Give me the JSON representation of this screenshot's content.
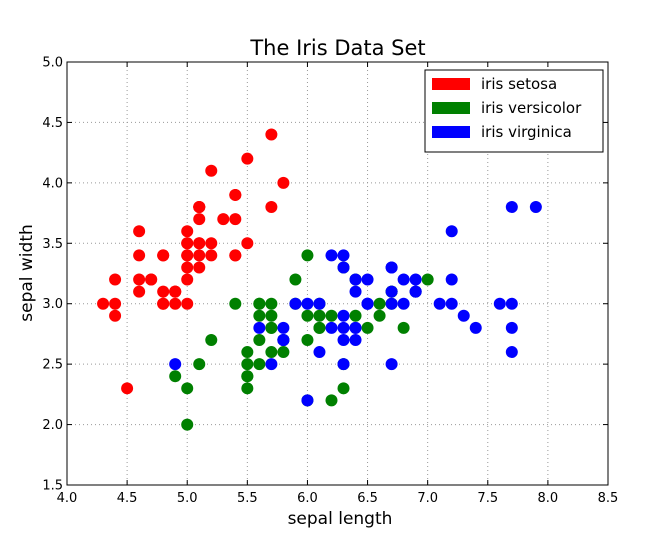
{
  "chart_data": {
    "type": "scatter",
    "title": "The Iris Data Set",
    "xlabel": "sepal length",
    "ylabel": "sepal width",
    "xlim": [
      4.0,
      8.5
    ],
    "ylim": [
      1.5,
      5.0
    ],
    "xticks": [
      "4.0",
      "4.5",
      "5.0",
      "5.5",
      "6.0",
      "6.5",
      "7.0",
      "7.5",
      "8.0",
      "8.5"
    ],
    "yticks": [
      "1.5",
      "2.0",
      "2.5",
      "3.0",
      "3.5",
      "4.0",
      "4.5",
      "5.0"
    ],
    "grid": true,
    "legend_position": "top-right",
    "series": [
      {
        "name": "iris setosa",
        "color": "#ff0000",
        "points": [
          [
            5.1,
            3.5
          ],
          [
            4.9,
            3.0
          ],
          [
            4.7,
            3.2
          ],
          [
            4.6,
            3.1
          ],
          [
            5.0,
            3.6
          ],
          [
            5.4,
            3.9
          ],
          [
            4.6,
            3.4
          ],
          [
            5.0,
            3.4
          ],
          [
            4.4,
            2.9
          ],
          [
            4.9,
            3.1
          ],
          [
            5.4,
            3.7
          ],
          [
            4.8,
            3.4
          ],
          [
            4.8,
            3.0
          ],
          [
            4.3,
            3.0
          ],
          [
            5.8,
            4.0
          ],
          [
            5.7,
            4.4
          ],
          [
            5.4,
            3.9
          ],
          [
            5.1,
            3.5
          ],
          [
            5.7,
            3.8
          ],
          [
            5.1,
            3.8
          ],
          [
            5.4,
            3.4
          ],
          [
            5.1,
            3.7
          ],
          [
            4.6,
            3.6
          ],
          [
            5.1,
            3.3
          ],
          [
            4.8,
            3.4
          ],
          [
            5.0,
            3.0
          ],
          [
            5.0,
            3.4
          ],
          [
            5.2,
            3.5
          ],
          [
            5.2,
            3.4
          ],
          [
            4.7,
            3.2
          ],
          [
            4.8,
            3.1
          ],
          [
            5.4,
            3.4
          ],
          [
            5.2,
            4.1
          ],
          [
            5.5,
            4.2
          ],
          [
            4.9,
            3.1
          ],
          [
            5.0,
            3.2
          ],
          [
            5.5,
            3.5
          ],
          [
            4.9,
            3.1
          ],
          [
            4.4,
            3.0
          ],
          [
            5.1,
            3.4
          ],
          [
            5.0,
            3.5
          ],
          [
            4.5,
            2.3
          ],
          [
            4.4,
            3.2
          ],
          [
            5.0,
            3.5
          ],
          [
            5.1,
            3.8
          ],
          [
            4.8,
            3.0
          ],
          [
            5.1,
            3.8
          ],
          [
            4.6,
            3.2
          ],
          [
            5.3,
            3.7
          ],
          [
            5.0,
            3.3
          ]
        ]
      },
      {
        "name": "iris versicolor",
        "color": "#008000",
        "points": [
          [
            7.0,
            3.2
          ],
          [
            6.4,
            3.2
          ],
          [
            6.9,
            3.1
          ],
          [
            5.5,
            2.3
          ],
          [
            6.5,
            2.8
          ],
          [
            5.7,
            2.8
          ],
          [
            6.3,
            3.3
          ],
          [
            4.9,
            2.4
          ],
          [
            6.6,
            2.9
          ],
          [
            5.2,
            2.7
          ],
          [
            5.0,
            2.0
          ],
          [
            5.9,
            3.0
          ],
          [
            6.0,
            2.2
          ],
          [
            6.1,
            2.9
          ],
          [
            5.6,
            2.9
          ],
          [
            6.7,
            3.1
          ],
          [
            5.6,
            3.0
          ],
          [
            5.8,
            2.7
          ],
          [
            6.2,
            2.2
          ],
          [
            5.6,
            2.5
          ],
          [
            5.9,
            3.2
          ],
          [
            6.1,
            2.8
          ],
          [
            6.3,
            2.5
          ],
          [
            6.1,
            2.8
          ],
          [
            6.4,
            2.9
          ],
          [
            6.6,
            3.0
          ],
          [
            6.8,
            2.8
          ],
          [
            6.7,
            3.0
          ],
          [
            6.0,
            2.9
          ],
          [
            5.7,
            2.6
          ],
          [
            5.5,
            2.4
          ],
          [
            5.5,
            2.4
          ],
          [
            5.8,
            2.7
          ],
          [
            6.0,
            2.7
          ],
          [
            5.4,
            3.0
          ],
          [
            6.0,
            3.4
          ],
          [
            6.7,
            3.1
          ],
          [
            6.3,
            2.3
          ],
          [
            5.6,
            3.0
          ],
          [
            5.5,
            2.5
          ],
          [
            5.5,
            2.6
          ],
          [
            6.1,
            3.0
          ],
          [
            5.8,
            2.6
          ],
          [
            5.0,
            2.3
          ],
          [
            5.6,
            2.7
          ],
          [
            5.7,
            3.0
          ],
          [
            5.7,
            2.9
          ],
          [
            6.2,
            2.9
          ],
          [
            5.1,
            2.5
          ],
          [
            5.7,
            2.8
          ]
        ]
      },
      {
        "name": "iris virginica",
        "color": "#0000ff",
        "points": [
          [
            6.3,
            3.3
          ],
          [
            5.8,
            2.7
          ],
          [
            7.1,
            3.0
          ],
          [
            6.3,
            2.9
          ],
          [
            6.5,
            3.0
          ],
          [
            7.6,
            3.0
          ],
          [
            4.9,
            2.5
          ],
          [
            7.3,
            2.9
          ],
          [
            6.7,
            2.5
          ],
          [
            7.2,
            3.6
          ],
          [
            6.5,
            3.2
          ],
          [
            6.4,
            2.7
          ],
          [
            6.8,
            3.0
          ],
          [
            5.7,
            2.5
          ],
          [
            5.8,
            2.8
          ],
          [
            6.4,
            3.2
          ],
          [
            6.5,
            3.0
          ],
          [
            7.7,
            3.8
          ],
          [
            7.7,
            2.6
          ],
          [
            6.0,
            2.2
          ],
          [
            6.9,
            3.2
          ],
          [
            5.6,
            2.8
          ],
          [
            7.7,
            2.8
          ],
          [
            6.3,
            2.7
          ],
          [
            6.7,
            3.3
          ],
          [
            7.2,
            3.2
          ],
          [
            6.2,
            2.8
          ],
          [
            6.1,
            3.0
          ],
          [
            6.4,
            2.8
          ],
          [
            7.2,
            3.0
          ],
          [
            7.4,
            2.8
          ],
          [
            7.9,
            3.8
          ],
          [
            6.4,
            2.8
          ],
          [
            6.3,
            2.8
          ],
          [
            6.1,
            2.6
          ],
          [
            7.7,
            3.0
          ],
          [
            6.3,
            3.4
          ],
          [
            6.4,
            3.1
          ],
          [
            6.0,
            3.0
          ],
          [
            6.9,
            3.1
          ],
          [
            6.7,
            3.1
          ],
          [
            6.9,
            3.1
          ],
          [
            5.8,
            2.7
          ],
          [
            6.8,
            3.2
          ],
          [
            6.7,
            3.3
          ],
          [
            6.7,
            3.0
          ],
          [
            6.3,
            2.5
          ],
          [
            6.5,
            3.0
          ],
          [
            6.2,
            3.4
          ],
          [
            5.9,
            3.0
          ]
        ]
      }
    ]
  }
}
